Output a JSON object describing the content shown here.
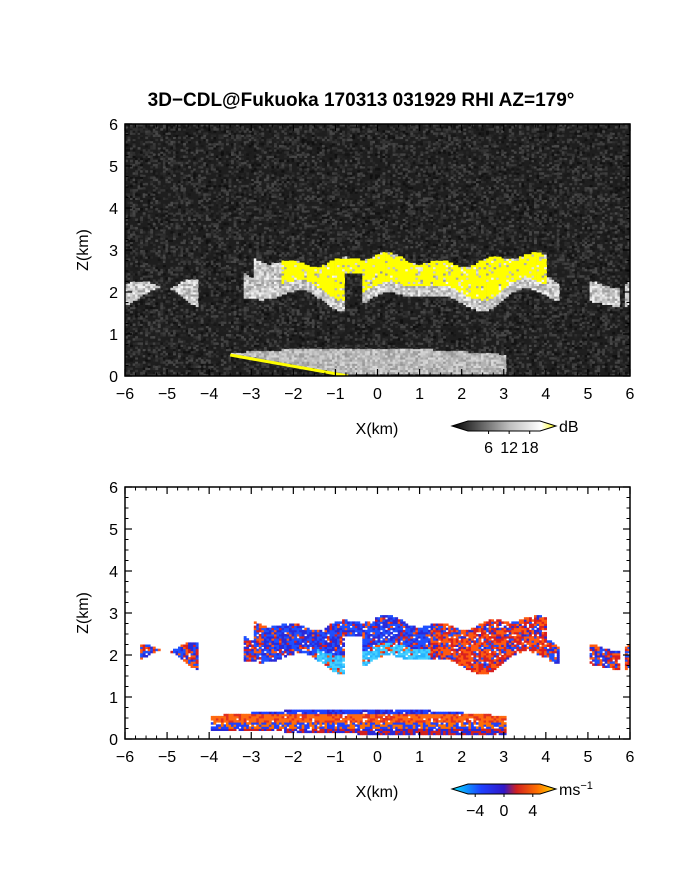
{
  "figure_title": "3D−CDL@Fukuoka 170313 031929 RHI AZ=179°",
  "chart_data": [
    {
      "type": "heatmap",
      "panel": "top",
      "title": "3D−CDL@Fukuoka 170313 031929 RHI AZ=179°",
      "xlabel": "X(km)",
      "ylabel": "Z(km)",
      "xlim": [
        -6,
        6
      ],
      "ylim": [
        0,
        6
      ],
      "x_ticks": [
        "−6",
        "−5",
        "−4",
        "−3",
        "−2",
        "−1",
        "0",
        "1",
        "2",
        "3",
        "4",
        "5",
        "6"
      ],
      "y_ticks": [
        "0",
        "1",
        "2",
        "3",
        "4",
        "5",
        "6"
      ],
      "colorbar": {
        "unit": "dB",
        "ticks": [
          "6",
          "12",
          "18"
        ],
        "range": [
          0,
          21
        ],
        "colors": [
          "#000000",
          "#ffffff",
          "#ffff00"
        ]
      },
      "background": "#1e1e1e",
      "features": {
        "cloud_layer_base_km": 1.8,
        "cloud_layer_top_km": 2.9,
        "saturated_region_x_km": [
          -2.3,
          4.0
        ],
        "saturated_color": "#ffff00",
        "surface_clutter_top_km": 0.65,
        "surface_clutter_x_km": [
          -4.0,
          3.0
        ],
        "ground_line": {
          "x": [
            -3.5,
            -0.7
          ],
          "z": [
            0.5,
            0.0
          ],
          "color": "#ffff00"
        }
      }
    },
    {
      "type": "heatmap",
      "panel": "bottom",
      "xlabel": "X(km)",
      "ylabel": "Z(km)",
      "xlim": [
        -6,
        6
      ],
      "ylim": [
        0,
        6
      ],
      "x_ticks": [
        "−6",
        "−5",
        "−4",
        "−3",
        "−2",
        "−1",
        "0",
        "1",
        "2",
        "3",
        "4",
        "5",
        "6"
      ],
      "y_ticks": [
        "0",
        "1",
        "2",
        "3",
        "4",
        "5",
        "6"
      ],
      "colorbar": {
        "unit": "ms",
        "unit_exponent": "−1",
        "ticks": [
          "−4",
          "0",
          "4"
        ],
        "range": [
          -5,
          5
        ],
        "colors": [
          "#00e5ff",
          "#1e40ff",
          "#3020d0",
          "#d02020",
          "#ff6a00",
          "#ffe000"
        ]
      },
      "background": "#ffffff",
      "features": {
        "cloud_layer_base_km": 1.8,
        "cloud_layer_top_km": 2.9,
        "toward_region_x_km": [
          -2.8,
          1.2
        ],
        "away_region_x_km": [
          1.2,
          4.0
        ],
        "boundary_layer_top_km": 0.7,
        "boundary_layer_x_km": [
          -4.0,
          3.0
        ]
      }
    }
  ]
}
